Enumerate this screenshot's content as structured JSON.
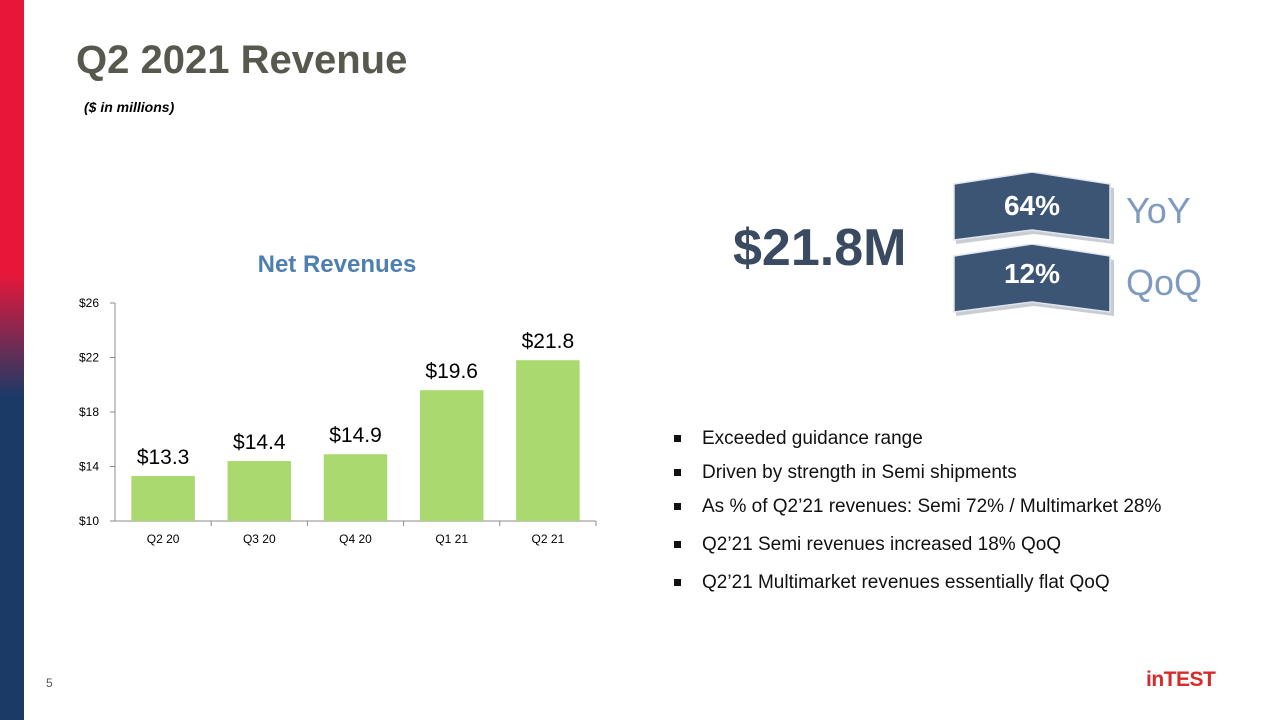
{
  "slide": {
    "title": "Q2 2021 Revenue",
    "subtitle": "($ in millions)",
    "page_number": "5",
    "logo_text": "inTEST"
  },
  "highlight": {
    "value": "$21.8M",
    "yoy": {
      "percent": "64%",
      "label": "YoY"
    },
    "qoq": {
      "percent": "12%",
      "label": "QoQ"
    }
  },
  "bullets": [
    "Exceeded guidance range",
    "Driven by strength in Semi shipments",
    "As % of Q2’21 revenues: Semi 72% / Multimarket  28%",
    "Q2’21 Semi revenues increased 18% QoQ",
    "Q2’21 Multimarket  revenues essentially flat QoQ"
  ],
  "colors": {
    "bar": "#a9d96f",
    "badge": "#3d5575",
    "title": "#57594f",
    "chart_title": "#4f7fb0",
    "accent_red": "#e8173a",
    "accent_navy": "#1c3a66"
  },
  "chart_data": {
    "type": "bar",
    "title": "Net Revenues",
    "categories": [
      "Q2 20",
      "Q3 20",
      "Q4 20",
      "Q1 21",
      "Q2 21"
    ],
    "values": [
      13.3,
      14.4,
      14.9,
      19.6,
      21.8
    ],
    "data_labels": [
      "$13.3",
      "$14.4",
      "$14.9",
      "$19.6",
      "$21.8"
    ],
    "ylim": [
      10,
      26
    ],
    "yticks": [
      10,
      14,
      18,
      22,
      26
    ],
    "ytick_labels": [
      "$10",
      "$14",
      "$18",
      "$22",
      "$26"
    ],
    "grid": false,
    "legend": "none"
  }
}
